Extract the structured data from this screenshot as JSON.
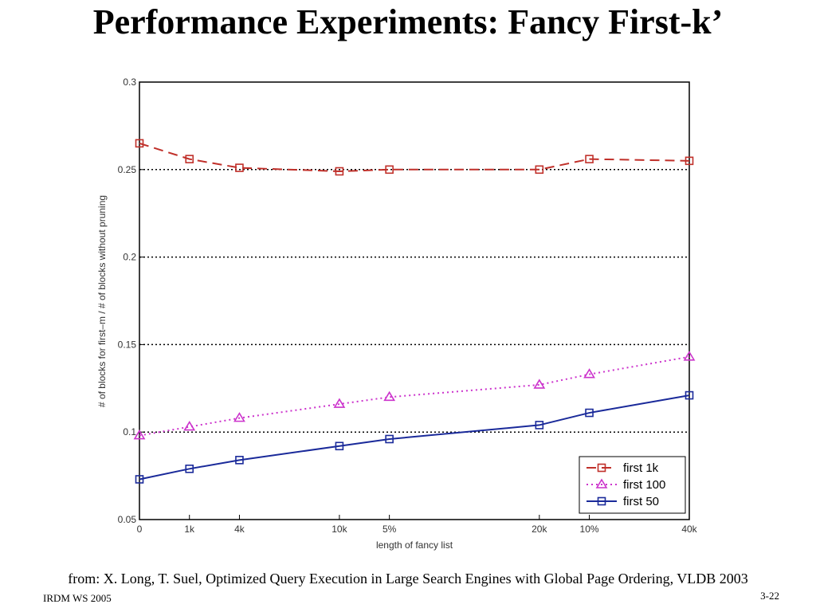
{
  "slide": {
    "title": "Performance Experiments: Fancy First-k’",
    "citation": "from: X. Long, T. Suel, Optimized Query Execution in Large Search Engines with Global Page Ordering, VLDB 2003",
    "footer_left": "IRDM  WS 2005",
    "footer_right": "3-22"
  },
  "chart_data": {
    "type": "line",
    "xlabel": "length of fancy list",
    "ylabel": "# of blocks for first–m / # of blocks without pruning",
    "x_positions": [
      0,
      1,
      2,
      4,
      5,
      8,
      9,
      11
    ],
    "xlim": [
      0,
      11
    ],
    "x_tick_labels": [
      {
        "x": 0,
        "label": "0"
      },
      {
        "x": 1,
        "label": "1k"
      },
      {
        "x": 2,
        "label": "4k"
      },
      {
        "x": 4,
        "label": "10k"
      },
      {
        "x": 5,
        "label": "5%"
      },
      {
        "x": 8,
        "label": "20k"
      },
      {
        "x": 9,
        "label": "10%"
      },
      {
        "x": 11,
        "label": "40k"
      }
    ],
    "ylim": [
      0.05,
      0.3
    ],
    "y_ticks": [
      {
        "v": 0.05,
        "label": "0.05"
      },
      {
        "v": 0.1,
        "label": "0.1"
      },
      {
        "v": 0.15,
        "label": "0.15"
      },
      {
        "v": 0.2,
        "label": "0.2"
      },
      {
        "v": 0.25,
        "label": "0.25"
      },
      {
        "v": 0.3,
        "label": "0.3"
      }
    ],
    "grid": "horizontal dotted",
    "legend_position": "bottom-right",
    "series": [
      {
        "name": "first 1k",
        "color": "#c0302a",
        "marker": "square",
        "dash": "dashed",
        "values": [
          0.265,
          0.256,
          0.251,
          0.249,
          0.25,
          0.25,
          0.256,
          0.255
        ]
      },
      {
        "name": "first 100",
        "color": "#cc33cc",
        "marker": "triangle",
        "dash": "dotted",
        "values": [
          0.098,
          0.103,
          0.108,
          0.116,
          0.12,
          0.127,
          0.133,
          0.143
        ]
      },
      {
        "name": "first 50",
        "color": "#1a2a9a",
        "marker": "square",
        "dash": "solid",
        "values": [
          0.073,
          0.079,
          0.084,
          0.092,
          0.096,
          0.104,
          0.111,
          0.121
        ]
      }
    ]
  }
}
